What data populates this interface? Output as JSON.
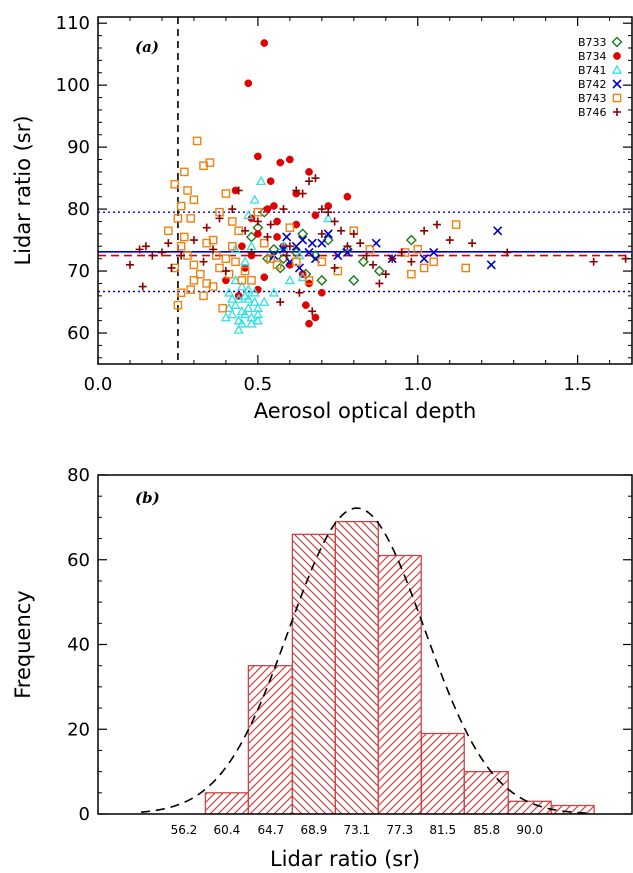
{
  "chart_data": [
    {
      "type": "scatter",
      "panel_label": "(a)",
      "xlabel": "Aerosol optical depth",
      "ylabel": "Lidar ratio (sr)",
      "xlim": [
        0.0,
        1.67
      ],
      "ylim": [
        55,
        111
      ],
      "xticks": [
        0.0,
        0.5,
        1.0,
        1.5
      ],
      "xtick_labels": [
        "0.0",
        "0.5",
        "1.0",
        "1.5"
      ],
      "yticks": [
        60,
        70,
        80,
        90,
        100,
        110
      ],
      "ytick_labels": [
        "60",
        "70",
        "80",
        "90",
        "100",
        "110"
      ],
      "legend_position": "top-right",
      "reference_lines": {
        "vertical_dashed_x": 0.25,
        "mean_solid_y": 73.1,
        "dashed_red_y": 72.5,
        "dotted_upper_y": 79.5,
        "dotted_lower_y": 66.7
      },
      "series": [
        {
          "name": "B733",
          "marker": "diamond",
          "color": "#1a7a1a",
          "points": [
            [
              0.48,
              75.5
            ],
            [
              0.52,
              79.5
            ],
            [
              0.53,
              72.0
            ],
            [
              0.55,
              73.5
            ],
            [
              0.57,
              70.5
            ],
            [
              0.62,
              73.0
            ],
            [
              0.65,
              69.5
            ],
            [
              0.68,
              72.5
            ],
            [
              0.7,
              68.5
            ],
            [
              0.72,
              75.0
            ],
            [
              0.78,
              73.5
            ],
            [
              0.8,
              68.5
            ],
            [
              0.83,
              71.5
            ],
            [
              0.88,
              70.0
            ],
            [
              0.98,
              75.0
            ],
            [
              0.5,
              77.0
            ],
            [
              0.58,
              72.0
            ],
            [
              0.64,
              76.0
            ]
          ]
        },
        {
          "name": "B734",
          "marker": "circle",
          "color": "#e00000",
          "points": [
            [
              0.47,
              100.3
            ],
            [
              0.52,
              106.8
            ],
            [
              0.5,
              88.5
            ],
            [
              0.57,
              87.5
            ],
            [
              0.6,
              88.0
            ],
            [
              0.54,
              84.5
            ],
            [
              0.66,
              86.0
            ],
            [
              0.78,
              82.0
            ],
            [
              0.43,
              83.0
            ],
            [
              0.55,
              80.5
            ],
            [
              0.53,
              80.0
            ],
            [
              0.56,
              78.0
            ],
            [
              0.5,
              76.0
            ],
            [
              0.62,
              77.5
            ],
            [
              0.68,
              79.0
            ],
            [
              0.72,
              80.5
            ],
            [
              0.45,
              74.0
            ],
            [
              0.48,
              72.5
            ],
            [
              0.58,
              74.0
            ],
            [
              0.6,
              71.0
            ],
            [
              0.64,
              69.5
            ],
            [
              0.66,
              68.0
            ],
            [
              0.68,
              62.5
            ],
            [
              0.7,
              66.5
            ],
            [
              0.52,
              69.0
            ],
            [
              0.46,
              70.5
            ],
            [
              0.4,
              68.5
            ],
            [
              0.44,
              66.0
            ],
            [
              0.65,
              64.5
            ],
            [
              0.56,
              75.5
            ],
            [
              0.48,
              78.5
            ],
            [
              0.62,
              82.5
            ],
            [
              0.66,
              61.5
            ],
            [
              0.5,
              67.0
            ]
          ]
        },
        {
          "name": "B741",
          "marker": "triangle",
          "color": "#33e0e0",
          "points": [
            [
              0.4,
              62.5
            ],
            [
              0.42,
              63.0
            ],
            [
              0.43,
              64.5
            ],
            [
              0.44,
              65.5
            ],
            [
              0.45,
              63.5
            ],
            [
              0.46,
              66.0
            ],
            [
              0.47,
              64.0
            ],
            [
              0.48,
              62.5
            ],
            [
              0.49,
              65.0
            ],
            [
              0.5,
              63.0
            ],
            [
              0.45,
              67.5
            ],
            [
              0.43,
              68.5
            ],
            [
              0.41,
              66.5
            ],
            [
              0.44,
              62.0
            ],
            [
              0.47,
              67.0
            ],
            [
              0.49,
              66.5
            ],
            [
              0.46,
              63.0
            ],
            [
              0.48,
              61.5
            ],
            [
              0.42,
              65.5
            ],
            [
              0.5,
              64.0
            ],
            [
              0.46,
              71.5
            ],
            [
              0.43,
              73.5
            ],
            [
              0.48,
              74.0
            ],
            [
              0.49,
              81.5
            ],
            [
              0.51,
              84.5
            ],
            [
              0.47,
              79.0
            ],
            [
              0.58,
              74.0
            ],
            [
              0.6,
              68.5
            ],
            [
              0.63,
              72.5
            ],
            [
              0.64,
              69.0
            ],
            [
              0.72,
              78.5
            ],
            [
              0.55,
              66.5
            ],
            [
              0.52,
              65.0
            ],
            [
              0.44,
              60.5
            ],
            [
              0.45,
              61.5
            ],
            [
              0.41,
              64.0
            ],
            [
              0.5,
              62.0
            ],
            [
              0.47,
              65.5
            ]
          ]
        },
        {
          "name": "B742",
          "marker": "x",
          "color": "#0000cc",
          "points": [
            [
              0.55,
              72.5
            ],
            [
              0.58,
              73.5
            ],
            [
              0.6,
              71.5
            ],
            [
              0.62,
              74.0
            ],
            [
              0.64,
              75.0
            ],
            [
              0.66,
              73.0
            ],
            [
              0.68,
              72.0
            ],
            [
              0.7,
              74.5
            ],
            [
              0.72,
              76.0
            ],
            [
              0.75,
              72.5
            ],
            [
              0.78,
              73.0
            ],
            [
              0.87,
              74.5
            ],
            [
              0.92,
              72.0
            ],
            [
              1.02,
              72.0
            ],
            [
              1.05,
              73.0
            ],
            [
              1.23,
              71.0
            ],
            [
              1.25,
              76.5
            ],
            [
              0.63,
              70.5
            ],
            [
              0.59,
              75.5
            ],
            [
              0.67,
              74.5
            ]
          ]
        },
        {
          "name": "B743",
          "marker": "square",
          "color": "#f08010",
          "points": [
            [
              0.31,
              91.0
            ],
            [
              0.33,
              87.0
            ],
            [
              0.35,
              87.5
            ],
            [
              0.27,
              86.0
            ],
            [
              0.28,
              83.0
            ],
            [
              0.24,
              84.0
            ],
            [
              0.3,
              81.5
            ],
            [
              0.26,
              80.5
            ],
            [
              0.29,
              78.5
            ],
            [
              0.25,
              78.5
            ],
            [
              0.22,
              76.5
            ],
            [
              0.26,
              74.0
            ],
            [
              0.28,
              72.5
            ],
            [
              0.3,
              71.0
            ],
            [
              0.32,
              69.5
            ],
            [
              0.34,
              68.0
            ],
            [
              0.36,
              67.5
            ],
            [
              0.38,
              70.5
            ],
            [
              0.4,
              72.0
            ],
            [
              0.42,
              74.0
            ],
            [
              0.44,
              76.5
            ],
            [
              0.46,
              70.0
            ],
            [
              0.48,
              68.5
            ],
            [
              0.5,
              79.5
            ],
            [
              0.52,
              74.5
            ],
            [
              0.54,
              72.0
            ],
            [
              0.56,
              71.0
            ],
            [
              0.36,
              75.0
            ],
            [
              0.38,
              79.5
            ],
            [
              0.4,
              82.5
            ],
            [
              0.42,
              78.0
            ],
            [
              0.24,
              70.5
            ],
            [
              0.26,
              66.5
            ],
            [
              0.25,
              64.5
            ],
            [
              0.29,
              67.0
            ],
            [
              0.33,
              66.0
            ],
            [
              0.39,
              64.0
            ],
            [
              0.45,
              68.5
            ],
            [
              0.6,
              77.0
            ],
            [
              0.62,
              71.5
            ],
            [
              0.66,
              68.5
            ],
            [
              0.7,
              71.5
            ],
            [
              0.75,
              70.0
            ],
            [
              0.96,
              73.0
            ],
            [
              1.0,
              73.5
            ],
            [
              1.02,
              70.5
            ],
            [
              1.05,
              71.5
            ],
            [
              1.12,
              77.5
            ],
            [
              1.15,
              70.5
            ],
            [
              0.98,
              69.5
            ],
            [
              0.85,
              73.5
            ],
            [
              0.8,
              76.5
            ],
            [
              0.34,
              74.5
            ],
            [
              0.3,
              68.5
            ],
            [
              0.37,
              72.5
            ],
            [
              0.41,
              69.5
            ],
            [
              0.43,
              71.5
            ],
            [
              0.27,
              75.5
            ]
          ]
        },
        {
          "name": "B746",
          "marker": "plus",
          "color": "#880000",
          "points": [
            [
              0.1,
              71.0
            ],
            [
              0.13,
              73.5
            ],
            [
              0.15,
              74.0
            ],
            [
              0.17,
              72.5
            ],
            [
              0.2,
              73.0
            ],
            [
              0.22,
              74.5
            ],
            [
              0.23,
              70.5
            ],
            [
              0.14,
              67.5
            ],
            [
              0.3,
              75.0
            ],
            [
              0.34,
              77.0
            ],
            [
              0.38,
              78.5
            ],
            [
              0.42,
              80.0
            ],
            [
              0.44,
              83.0
            ],
            [
              0.46,
              76.5
            ],
            [
              0.5,
              78.0
            ],
            [
              0.54,
              77.5
            ],
            [
              0.58,
              80.0
            ],
            [
              0.62,
              83.0
            ],
            [
              0.64,
              82.5
            ],
            [
              0.66,
              84.5
            ],
            [
              0.68,
              85.0
            ],
            [
              0.7,
              80.0
            ],
            [
              0.72,
              79.5
            ],
            [
              0.74,
              78.0
            ],
            [
              0.76,
              76.5
            ],
            [
              0.78,
              74.0
            ],
            [
              0.8,
              76.0
            ],
            [
              0.82,
              74.5
            ],
            [
              0.84,
              72.5
            ],
            [
              0.86,
              71.0
            ],
            [
              0.88,
              68.0
            ],
            [
              0.9,
              69.5
            ],
            [
              0.92,
              72.0
            ],
            [
              0.95,
              73.0
            ],
            [
              0.98,
              71.5
            ],
            [
              1.02,
              76.5
            ],
            [
              1.06,
              77.5
            ],
            [
              1.1,
              75.0
            ],
            [
              1.17,
              74.5
            ],
            [
              1.28,
              73.0
            ],
            [
              1.55,
              71.5
            ],
            [
              1.65,
              72.0
            ],
            [
              0.6,
              74.0
            ],
            [
              0.63,
              66.5
            ],
            [
              0.67,
              63.5
            ],
            [
              0.59,
              72.5
            ],
            [
              0.57,
              65.0
            ],
            [
              0.53,
              75.5
            ],
            [
              0.48,
              73.0
            ],
            [
              0.4,
              70.0
            ],
            [
              0.36,
              73.5
            ],
            [
              0.33,
              71.5
            ],
            [
              0.7,
              76.0
            ],
            [
              0.74,
              70.5
            ],
            [
              0.26,
              72.5
            ]
          ]
        }
      ]
    },
    {
      "type": "bar",
      "panel_label": "(b)",
      "xlabel": "Lidar ratio (sr)",
      "ylabel": "Frequency",
      "xlim": [
        47.8,
        100.0
      ],
      "ylim": [
        0,
        80
      ],
      "yticks": [
        0,
        20,
        40,
        60,
        80
      ],
      "ytick_labels": [
        "0",
        "20",
        "40",
        "60",
        "80"
      ],
      "xticks": [
        56.2,
        60.4,
        64.7,
        68.9,
        73.1,
        77.3,
        81.5,
        85.8,
        90.0
      ],
      "xtick_labels": [
        "56.2",
        "60.4",
        "64.7",
        "68.9",
        "73.1",
        "77.3",
        "81.5",
        "85.8",
        "90.0"
      ],
      "bin_edges": [
        58.3,
        62.5,
        66.8,
        71.0,
        75.2,
        79.4,
        83.6,
        87.9,
        92.1,
        96.3
      ],
      "values": [
        5,
        35,
        66,
        69,
        61,
        19,
        10,
        3,
        2
      ],
      "fit_curve": {
        "type": "gaussian",
        "mean": 73.1,
        "sigma": 6.6,
        "peak": 72.2
      },
      "hatch_color": "#cc4444"
    }
  ]
}
